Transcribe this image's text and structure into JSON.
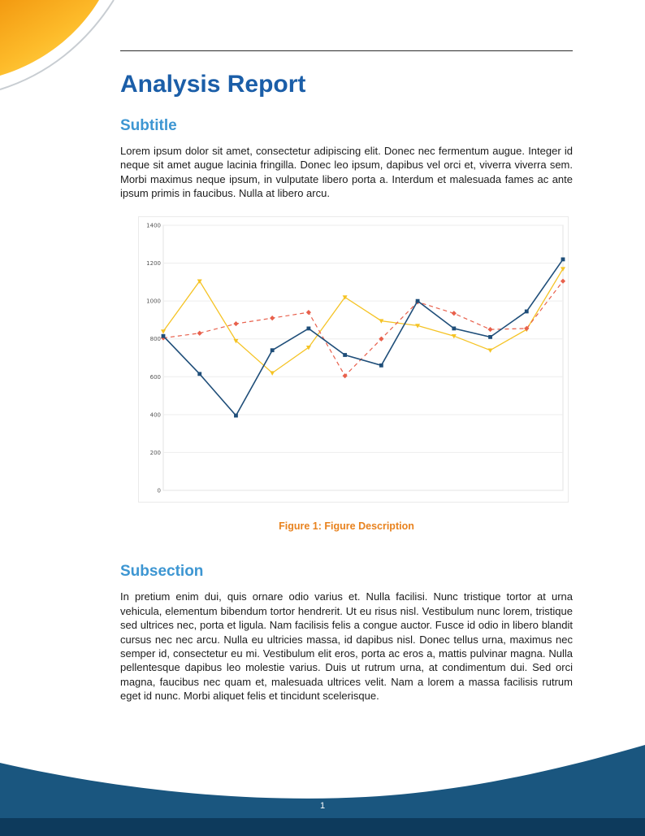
{
  "document": {
    "title": "Analysis Report"
  },
  "sections": [
    {
      "heading": "Subtitle",
      "body": "Lorem ipsum dolor sit amet, consectetur adipiscing elit. Donec nec fermentum augue. Integer id neque sit amet augue lacinia fringilla. Donec leo ipsum, dapibus vel orci et, viverra viverra sem. Morbi maximus neque ipsum, in vulputate libero porta a. Interdum et malesuada fames ac ante ipsum primis in faucibus. Nulla at libero arcu."
    },
    {
      "heading": "Subsection",
      "body": "In pretium enim dui, quis ornare odio varius et. Nulla facilisi. Nunc tristique tortor at urna vehicula, elementum bibendum tortor hendrerit. Ut eu risus nisl. Vestibulum nunc lorem, tristique sed ultrices nec, porta et ligula. Nam facilisis felis a congue auctor. Fusce id odio in libero blandit cursus nec nec arcu. Nulla eu ultricies massa, id dapibus nisl. Donec tellus urna, maximus nec semper id, consectetur eu mi. Vestibulum elit eros, porta ac eros a, mattis pulvinar magna. Nulla pellentesque dapibus leo molestie varius. Duis ut rutrum urna, at condimentum dui. Sed orci magna, faucibus nec quam et, malesuada ultrices velit. Nam a lorem a massa facilisis rutrum eget id nunc. Morbi aliquet felis et tincidunt scelerisque."
    }
  ],
  "figure": {
    "caption_label": "Figure 1:",
    "caption_text": "Figure Description"
  },
  "footer": {
    "page_number": "1"
  },
  "colors": {
    "title_blue": "#1b5ea8",
    "subheading_blue": "#3d96d2",
    "caption_orange": "#e8821e",
    "footer_wave_blue": "#1a567f",
    "footer_band_navy": "#0d3a5c",
    "corner_orange": "#f39a11",
    "corner_yellow": "#ffd84d"
  },
  "chart_data": {
    "type": "line",
    "title": "",
    "xlabel": "",
    "ylabel": "",
    "grid": "horizontal",
    "legend": "none",
    "x": [
      0,
      1,
      2,
      3,
      4,
      5,
      6,
      7,
      8,
      9,
      10,
      11
    ],
    "ylim": [
      0,
      1400
    ],
    "yticks": [
      0,
      200,
      400,
      600,
      800,
      1000,
      1200,
      1400
    ],
    "ytick_labels": [
      "0",
      "200",
      "400",
      "600",
      "800",
      "1000",
      "1200",
      "1400"
    ],
    "series": [
      {
        "name": "yellow-series",
        "color": "#f5c324",
        "marker": "triangle",
        "dash": null,
        "width": 1.3,
        "values": [
          840,
          1105,
          790,
          620,
          755,
          1020,
          895,
          870,
          815,
          740,
          850,
          1170
        ]
      },
      {
        "name": "red-dashed-series",
        "color": "#e8604c",
        "marker": "diamond",
        "dash": "5 4",
        "width": 1.2,
        "values": [
          805,
          830,
          880,
          910,
          940,
          605,
          800,
          995,
          935,
          850,
          855,
          1105
        ]
      },
      {
        "name": "blue-series",
        "color": "#1f4e79",
        "marker": "square",
        "dash": null,
        "width": 1.6,
        "values": [
          815,
          615,
          395,
          740,
          855,
          715,
          660,
          1000,
          855,
          810,
          945,
          1220
        ]
      }
    ]
  }
}
